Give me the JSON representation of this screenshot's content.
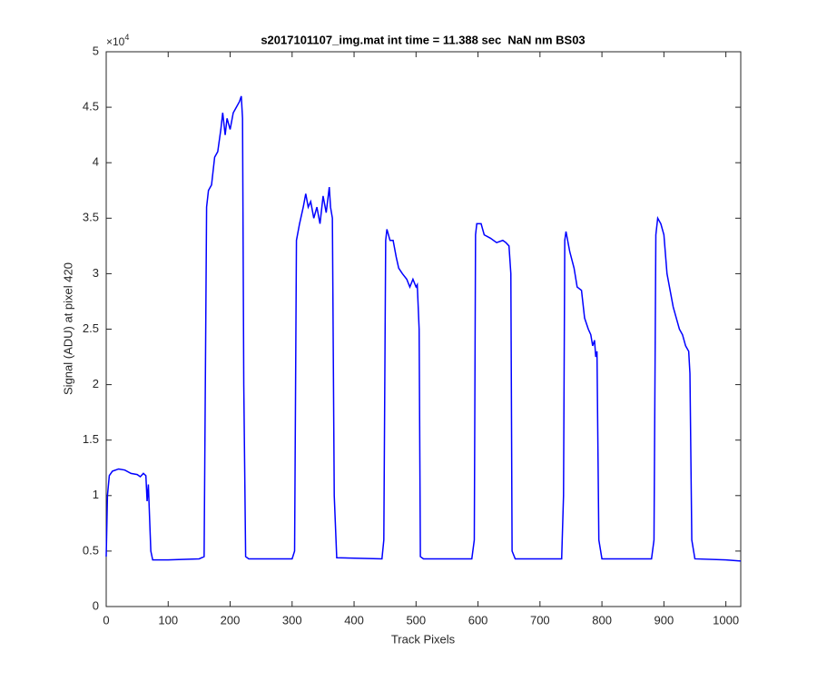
{
  "chart_data": {
    "type": "line",
    "title": "s2017101107_img.mat int time = 11.388 sec  NaN nm BS03",
    "x_label": "Track Pixels",
    "y_label": "Signal (ADU) at pixel 420",
    "y_multiplier_base": "×10",
    "y_multiplier_exponent": "4",
    "xlim": [
      0,
      1024
    ],
    "ylim": [
      0,
      5
    ],
    "xticks": [
      0,
      100,
      200,
      300,
      400,
      500,
      600,
      700,
      800,
      900,
      1000
    ],
    "yticks": [
      0,
      0.5,
      1,
      1.5,
      2,
      2.5,
      3,
      3.5,
      4,
      4.5,
      5
    ],
    "series": [
      {
        "color": "#0000ff",
        "x": [
          0,
          2,
          5,
          10,
          20,
          30,
          40,
          50,
          55,
          60,
          64,
          66,
          68,
          70,
          72,
          75,
          100,
          150,
          158,
          162,
          165,
          170,
          175,
          180,
          185,
          188,
          192,
          195,
          200,
          205,
          210,
          215,
          218,
          220,
          222,
          225,
          230,
          300,
          304,
          307,
          312,
          318,
          322,
          326,
          330,
          335,
          340,
          345,
          350,
          355,
          360,
          362,
          365,
          368,
          372,
          445,
          448,
          451,
          453,
          458,
          463,
          468,
          472,
          478,
          485,
          490,
          495,
          500,
          502,
          505,
          507,
          512,
          590,
          594,
          596,
          598,
          605,
          610,
          620,
          630,
          640,
          645,
          650,
          653,
          655,
          660,
          735,
          738,
          740,
          742,
          748,
          755,
          760,
          767,
          772,
          778,
          782,
          785,
          788,
          790,
          792,
          795,
          800,
          880,
          884,
          887,
          890,
          895,
          900,
          905,
          910,
          915,
          920,
          925,
          930,
          935,
          940,
          942,
          945,
          950,
          1000,
          1024
        ],
        "values": [
          0.45,
          1.0,
          1.18,
          1.22,
          1.24,
          1.23,
          1.2,
          1.19,
          1.17,
          1.2,
          1.18,
          0.95,
          1.1,
          0.8,
          0.5,
          0.42,
          0.42,
          0.43,
          0.45,
          3.6,
          3.75,
          3.8,
          4.05,
          4.1,
          4.3,
          4.45,
          4.25,
          4.4,
          4.3,
          4.45,
          4.5,
          4.55,
          4.6,
          4.4,
          2.0,
          0.45,
          0.43,
          0.43,
          0.5,
          3.3,
          3.45,
          3.6,
          3.72,
          3.6,
          3.65,
          3.5,
          3.6,
          3.45,
          3.7,
          3.55,
          3.78,
          3.6,
          3.5,
          1.0,
          0.44,
          0.43,
          0.6,
          3.3,
          3.4,
          3.3,
          3.3,
          3.15,
          3.05,
          3.0,
          2.95,
          2.88,
          2.95,
          2.88,
          2.9,
          2.5,
          0.45,
          0.43,
          0.43,
          0.6,
          3.35,
          3.45,
          3.45,
          3.35,
          3.32,
          3.28,
          3.3,
          3.28,
          3.25,
          3.0,
          0.5,
          0.43,
          0.43,
          1.0,
          3.3,
          3.38,
          3.2,
          3.05,
          2.88,
          2.85,
          2.6,
          2.5,
          2.45,
          2.35,
          2.4,
          2.25,
          2.3,
          0.6,
          0.43,
          0.43,
          0.6,
          3.35,
          3.5,
          3.45,
          3.35,
          3.0,
          2.85,
          2.7,
          2.6,
          2.5,
          2.45,
          2.35,
          2.3,
          2.1,
          0.6,
          0.43,
          0.42,
          0.41
        ]
      }
    ]
  }
}
